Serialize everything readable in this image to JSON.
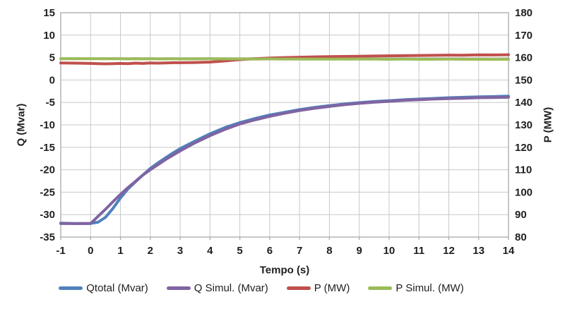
{
  "chart_data": {
    "type": "line",
    "title": "",
    "xlabel": "Tempo (s)",
    "ylabel_left": "Q (Mvar)",
    "ylabel_right": "P (MW)",
    "xlim": [
      -1,
      14
    ],
    "ylim_left": [
      -35,
      15
    ],
    "ylim_right": [
      80,
      180
    ],
    "xticks": [
      -1,
      0,
      1,
      2,
      3,
      4,
      5,
      6,
      7,
      8,
      9,
      10,
      11,
      12,
      13,
      14
    ],
    "yticks_left": [
      15,
      10,
      5,
      0,
      -5,
      -10,
      -15,
      -20,
      -25,
      -30,
      -35
    ],
    "yticks_right": [
      180,
      170,
      160,
      150,
      140,
      130,
      120,
      110,
      100,
      90,
      80
    ],
    "grid": true,
    "legend_position": "bottom",
    "x": [
      -1,
      -0.5,
      0,
      0.25,
      0.5,
      0.75,
      1,
      1.25,
      1.5,
      1.75,
      2,
      2.25,
      2.5,
      2.75,
      3,
      3.5,
      4,
      4.5,
      5,
      5.5,
      6,
      6.5,
      7,
      7.5,
      8,
      8.5,
      9,
      9.5,
      10,
      10.5,
      11,
      11.5,
      12,
      12.5,
      13,
      13.5,
      14
    ],
    "series": [
      {
        "name": "Qtotal (Mvar)",
        "axis": "left",
        "color": "#4F81BD",
        "values": [
          -31.9,
          -32.0,
          -31.95,
          -31.7,
          -30.6,
          -28.6,
          -26.3,
          -24.3,
          -22.7,
          -21.2,
          -19.7,
          -18.5,
          -17.4,
          -16.3,
          -15.3,
          -13.6,
          -12.0,
          -10.6,
          -9.5,
          -8.6,
          -7.8,
          -7.2,
          -6.6,
          -6.1,
          -5.7,
          -5.35,
          -5.05,
          -4.8,
          -4.6,
          -4.4,
          -4.25,
          -4.1,
          -3.95,
          -3.85,
          -3.75,
          -3.7,
          -3.6
        ]
      },
      {
        "name": "Q Simul. (Mvar)",
        "axis": "left",
        "color": "#8064A2",
        "values": [
          -32,
          -32,
          -32,
          -30.4,
          -28.8,
          -27.1,
          -25.5,
          -24.0,
          -22.6,
          -21.2,
          -20.0,
          -18.9,
          -17.8,
          -16.8,
          -15.8,
          -14.0,
          -12.4,
          -11.0,
          -9.8,
          -8.9,
          -8.1,
          -7.4,
          -6.8,
          -6.3,
          -5.9,
          -5.5,
          -5.2,
          -4.95,
          -4.75,
          -4.55,
          -4.4,
          -4.25,
          -4.15,
          -4.05,
          -3.95,
          -3.9,
          -3.85
        ]
      },
      {
        "name": "P (MW)",
        "axis": "right",
        "color": "#C0504D",
        "values": [
          157.6,
          157.5,
          157.4,
          157.3,
          157.2,
          157.3,
          157.4,
          157.3,
          157.5,
          157.4,
          157.6,
          157.5,
          157.6,
          157.7,
          157.7,
          157.8,
          158.0,
          158.5,
          159.1,
          159.5,
          159.8,
          160.0,
          160.15,
          160.3,
          160.45,
          160.5,
          160.6,
          160.7,
          160.8,
          160.85,
          160.95,
          161.0,
          161.1,
          161.05,
          161.2,
          161.15,
          161.25
        ]
      },
      {
        "name": "P Simul. (MW)",
        "axis": "right",
        "color": "#9BBB59",
        "values": [
          159.5,
          159.5,
          159.45,
          159.45,
          159.5,
          159.45,
          159.45,
          159.4,
          159.45,
          159.4,
          159.45,
          159.4,
          159.4,
          159.45,
          159.4,
          159.4,
          159.45,
          159.4,
          159.4,
          159.35,
          159.4,
          159.35,
          159.35,
          159.3,
          159.35,
          159.3,
          159.3,
          159.3,
          159.25,
          159.3,
          159.25,
          159.25,
          159.3,
          159.25,
          159.25,
          159.2,
          159.25
        ]
      }
    ]
  },
  "style": {
    "background": "#ffffff",
    "grid_color": "#C8C8C8",
    "border_color": "#A9A9A9",
    "text_color": "#1f1f1f",
    "line_width": 4
  }
}
